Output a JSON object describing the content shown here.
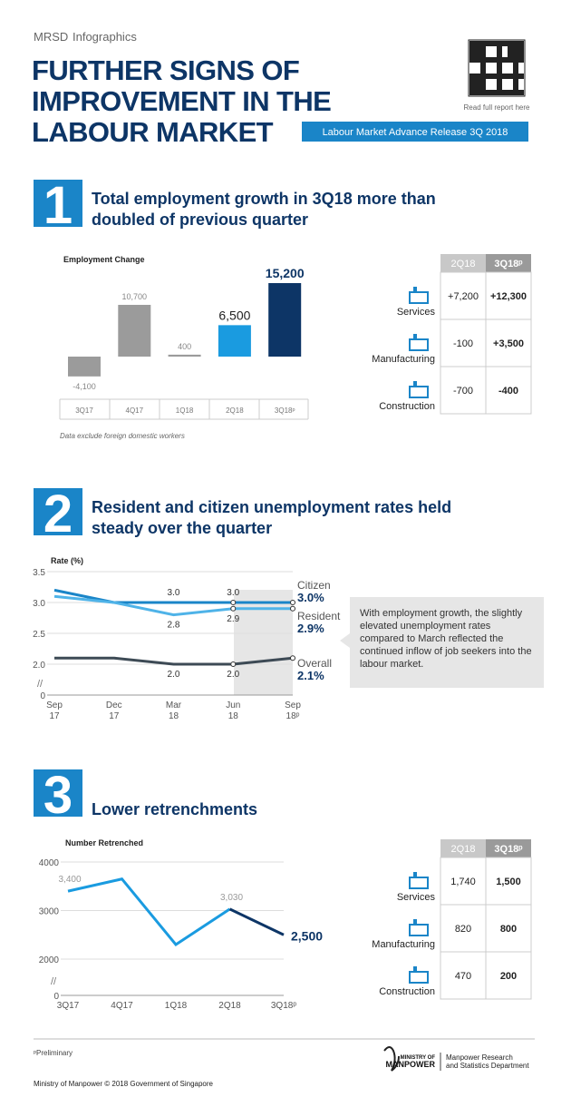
{
  "header": {
    "org": "MRSD",
    "kind": "Infographics",
    "title_lines": [
      "FURTHER SIGNS OF",
      "IMPROVEMENT IN THE",
      "LABOUR MARKET"
    ],
    "qr_caption": "Read full report here",
    "release": "Labour Market Advance Release 3Q 2018"
  },
  "sections": [
    {
      "number": "1",
      "heading": "Total employment growth in 3Q18 more than doubled of previous quarter",
      "chart": {
        "type": "bar",
        "title": "Employment Change",
        "categories": [
          "3Q17",
          "4Q17",
          "1Q18",
          "2Q18",
          "3Q18ᵖ"
        ],
        "values": [
          -4100,
          10700,
          400,
          6500,
          15200
        ],
        "value_labels": [
          "-4,100",
          "10,700",
          "400",
          "6,500",
          "15,200"
        ],
        "colors": [
          "#9b9b9b",
          "#9b9b9b",
          "#9b9b9b",
          "#1a9be0",
          "#0d3566"
        ]
      },
      "note": "Data exclude foreign domestic workers",
      "table": {
        "columns": [
          "2Q18",
          "3Q18ᵖ"
        ],
        "rows": [
          {
            "label": "Services",
            "values": [
              "+7,200",
              "+12,300"
            ]
          },
          {
            "label": "Manufacturing",
            "values": [
              "-100",
              "+3,500"
            ]
          },
          {
            "label": "Construction",
            "values": [
              "-700",
              "-400"
            ]
          }
        ]
      }
    },
    {
      "number": "2",
      "heading": "Resident and citizen unemployment rates held steady over the quarter",
      "chart": {
        "type": "line",
        "ylabel": "Rate (%)",
        "categories": [
          "Sep\n17",
          "Dec\n17",
          "Mar\n18",
          "Jun\n18",
          "Sep\n18ᵖ"
        ],
        "ylim": [
          0,
          3.5
        ],
        "axis_break": [
          0,
          2
        ],
        "yticks": [
          0,
          {
            "value": 2,
            "label": "2.0"
          },
          {
            "value": 2.5,
            "label": "2.5"
          },
          {
            "value": 3,
            "label": "3.0"
          },
          {
            "value": 3.5,
            "label": "3.5"
          }
        ],
        "series": [
          {
            "name": "Citizen",
            "color": "#1a85c8",
            "values": [
              3.2,
              3.0,
              3.0,
              3.0,
              3.0
            ],
            "value_labels": [
              null,
              null,
              "3.0",
              "3.0",
              "3.0%"
            ]
          },
          {
            "name": "Resident",
            "color": "#4fb3e8",
            "values": [
              3.1,
              3.0,
              2.8,
              2.9,
              2.9
            ],
            "value_labels": [
              null,
              null,
              "2.8",
              "2.9",
              "2.9%"
            ]
          },
          {
            "name": "Overall",
            "color": "#3d4a55",
            "values": [
              2.1,
              2.1,
              2.0,
              2.0,
              2.1
            ],
            "value_labels": [
              null,
              null,
              "2.0",
              "2.0",
              "2.1%"
            ]
          }
        ]
      },
      "callout": "With employment growth, the slightly elevated unemployment rates compared to March reflected the continued inflow of job seekers into the labour market."
    },
    {
      "number": "3",
      "heading": "Lower retrenchments",
      "chart": {
        "type": "line",
        "title": "Number Retrenched",
        "categories": [
          "3Q17",
          "4Q17",
          "1Q18",
          "2Q18",
          "3Q18ᵖ"
        ],
        "ylim": [
          0,
          4000
        ],
        "axis_break": [
          0,
          2000
        ],
        "yticks": [
          0,
          2000,
          3000,
          4000
        ],
        "series": [
          {
            "color": "#1a9be0",
            "highlight_color": "#0d3566",
            "values": [
              3400,
              3650,
              2300,
              3030,
              2500
            ],
            "value_labels": [
              "3,400",
              null,
              null,
              "3,030",
              "2,500"
            ]
          }
        ]
      },
      "table": {
        "columns": [
          "2Q18",
          "3Q18ᵖ"
        ],
        "rows": [
          {
            "label": "Services",
            "values": [
              "1,740",
              "1,500"
            ]
          },
          {
            "label": "Manufacturing",
            "values": [
              "820",
              "800"
            ]
          },
          {
            "label": "Construction",
            "values": [
              "470",
              "200"
            ]
          }
        ]
      }
    }
  ],
  "footer": {
    "note": "ᵖPreliminary",
    "logo_lines": [
      "MINISTRY OF",
      "MANPOWER"
    ],
    "department_lines": [
      "Manpower Research",
      "and Statistics Department"
    ],
    "copyright": "Ministry of Manpower © 2018 Government of Singapore"
  }
}
